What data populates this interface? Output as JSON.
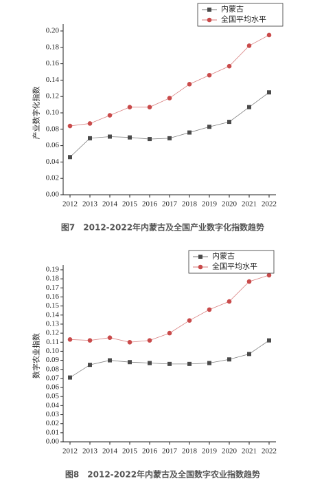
{
  "chart_data": [
    {
      "type": "line",
      "caption": "图7　2012-2022年内蒙古及全国产业数字化指数趋势",
      "ylabel": "产业数字化指数",
      "categories": [
        "2012",
        "2013",
        "2014",
        "2015",
        "2016",
        "2017",
        "2018",
        "2019",
        "2020",
        "2021",
        "2022"
      ],
      "series": [
        {
          "name": "内蒙古",
          "color": "#4a4a4a",
          "marker": "square",
          "values": [
            0.046,
            0.069,
            0.071,
            0.07,
            0.068,
            0.069,
            0.076,
            0.083,
            0.089,
            0.107,
            0.125
          ]
        },
        {
          "name": "全国平均水平",
          "color": "#c94a4a",
          "marker": "circle",
          "values": [
            0.084,
            0.087,
            0.097,
            0.107,
            0.107,
            0.118,
            0.135,
            0.146,
            0.157,
            0.182,
            0.195
          ]
        }
      ],
      "ylim": [
        0,
        0.2
      ],
      "yticks": [
        {
          "value": 0,
          "label": "0.00"
        },
        {
          "value": 0.02,
          "label": "0.02"
        },
        {
          "value": 0.04,
          "label": "0.04"
        },
        {
          "value": 0.06,
          "label": "0.06"
        },
        {
          "value": 0.08,
          "label": "0.08"
        },
        {
          "value": 0.1,
          "label": "0.10"
        },
        {
          "value": 0.12,
          "label": "0.12"
        },
        {
          "value": 0.14,
          "label": "0.14"
        },
        {
          "value": 0.16,
          "label": "0.16"
        },
        {
          "value": 0.18,
          "label": "0.18"
        },
        {
          "value": 0.2,
          "label": "0.20"
        }
      ],
      "legend": "top-right"
    },
    {
      "type": "line",
      "caption": "图8　2012-2022年内蒙古及全国数字农业指数趋势",
      "ylabel": "数字农业指数",
      "categories": [
        "2012",
        "2013",
        "2014",
        "2015",
        "2016",
        "2017",
        "2018",
        "2019",
        "2020",
        "2021",
        "2022"
      ],
      "series": [
        {
          "name": "内蒙古",
          "color": "#4a4a4a",
          "marker": "square",
          "values": [
            0.071,
            0.085,
            0.09,
            0.088,
            0.087,
            0.086,
            0.086,
            0.087,
            0.091,
            0.097,
            0.112
          ]
        },
        {
          "name": "全国平均水平",
          "color": "#c94a4a",
          "marker": "circle",
          "values": [
            0.113,
            0.112,
            0.115,
            0.11,
            0.112,
            0.12,
            0.134,
            0.146,
            0.155,
            0.177,
            0.184
          ]
        }
      ],
      "ylim": [
        0,
        0.19
      ],
      "yticks": [
        {
          "value": 0,
          "label": "0.00"
        },
        {
          "value": 0.01,
          "label": "0.01"
        },
        {
          "value": 0.02,
          "label": "0.02"
        },
        {
          "value": 0.03,
          "label": "0.03"
        },
        {
          "value": 0.04,
          "label": "0.04"
        },
        {
          "value": 0.05,
          "label": "0.05"
        },
        {
          "value": 0.06,
          "label": "0.06"
        },
        {
          "value": 0.07,
          "label": "0.07"
        },
        {
          "value": 0.08,
          "label": "0.08"
        },
        {
          "value": 0.09,
          "label": "0.09"
        },
        {
          "value": 0.1,
          "label": "0.10"
        },
        {
          "value": 0.11,
          "label": "0.11"
        },
        {
          "value": 0.12,
          "label": "0.12"
        },
        {
          "value": 0.13,
          "label": "0.13"
        },
        {
          "value": 0.14,
          "label": "0.14"
        },
        {
          "value": 0.15,
          "label": "0.15"
        },
        {
          "value": 0.16,
          "label": "0.16"
        },
        {
          "value": 0.17,
          "label": "0.17"
        },
        {
          "value": 0.18,
          "label": "0.18"
        },
        {
          "value": 0.19,
          "label": "0.19"
        }
      ],
      "legend": "top-right"
    }
  ]
}
